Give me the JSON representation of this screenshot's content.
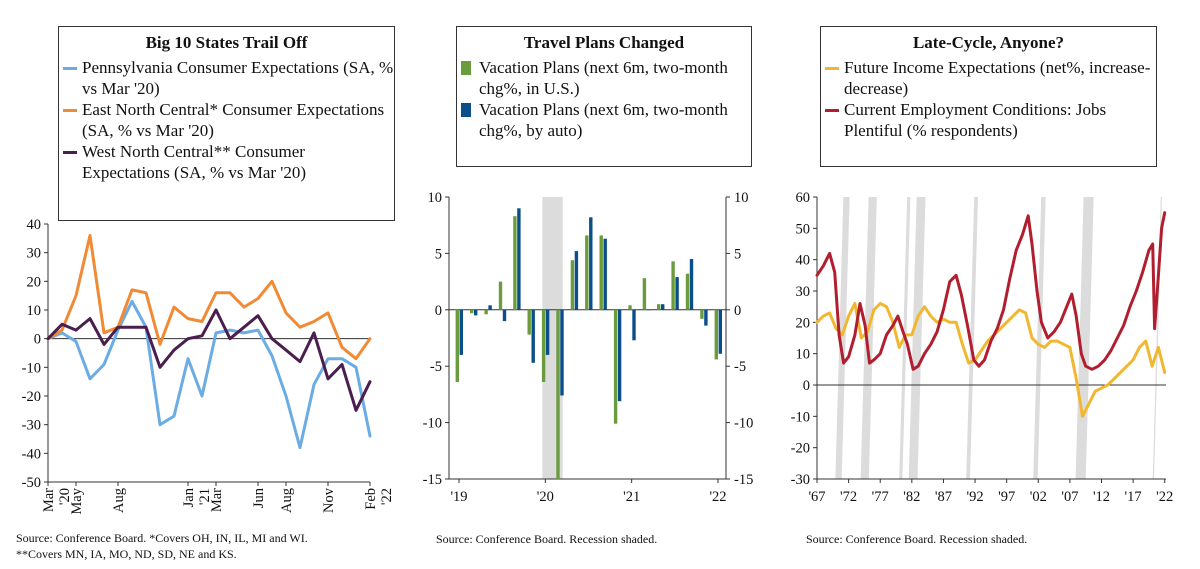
{
  "charts": [
    {
      "title": "Big 10 States Trail Off",
      "source_lines": [
        "Source: Conference Board. *Covers OH, IN, IL, MI and WI.",
        "**Covers MN, IA, MO, ND, SD, NE and KS."
      ]
    },
    {
      "title": "Travel Plans Changed",
      "source_lines": [
        "Source: Conference Board. Recession shaded."
      ]
    },
    {
      "title": "Late-Cycle, Anyone?",
      "source_lines": [
        "Source: Conference Board. Recession shaded."
      ]
    }
  ],
  "chart_data": [
    {
      "type": "line",
      "title": "Big 10 States Trail Off",
      "colors": {
        "Pennsylvania": "#6cace4",
        "East North Central": "#f08a35",
        "West North Central": "#4a1e4e"
      },
      "x_tick_labels": [
        [
          "Mar",
          "'20"
        ],
        [
          "May"
        ],
        [
          "Aug"
        ],
        [
          "Jan",
          "'21"
        ],
        [
          "Mar"
        ],
        [
          "Jun"
        ],
        [
          "Aug"
        ],
        [
          "Nov"
        ],
        [
          "Feb",
          "'22"
        ]
      ],
      "x_tick_index": [
        0,
        2,
        5,
        10,
        12,
        15,
        17,
        20,
        23
      ],
      "ylim": [
        -50,
        40
      ],
      "yticks": [
        40,
        30,
        20,
        10,
        0,
        -10,
        -20,
        -30,
        -40,
        -50
      ],
      "series": [
        {
          "name": "Pennsylvania Consumer Expectations (SA, % vs Mar '20)",
          "color": "#6cace4",
          "values": [
            0,
            2,
            -1,
            -14,
            -9,
            3,
            13,
            4,
            -30,
            -27,
            -7,
            -20,
            2,
            3,
            2,
            3,
            -6,
            -20,
            -38,
            -16,
            -7,
            -7,
            -10,
            -34
          ]
        },
        {
          "name": "East North Central* Consumer Expectations (SA, % vs Mar '20)",
          "color": "#f08a35",
          "values": [
            0,
            3,
            15,
            36,
            2,
            4,
            17,
            16,
            -2,
            11,
            7,
            6,
            16,
            16,
            11,
            14,
            20,
            9,
            4,
            6,
            9,
            -3,
            -7,
            0
          ]
        },
        {
          "name": "West North Central** Consumer Expectations (SA, % vs Mar '20)",
          "color": "#4a1e4e",
          "values": [
            0,
            5,
            3,
            7,
            -2,
            4,
            4,
            4,
            -10,
            -4,
            0,
            1,
            10,
            0,
            4,
            8,
            0,
            -4,
            -8,
            2,
            -14,
            -9,
            -25,
            -15
          ]
        }
      ]
    },
    {
      "type": "bar",
      "title": "Travel Plans Changed",
      "ylim": [
        -15,
        10
      ],
      "yticks": [
        10,
        5,
        0,
        -5,
        -10,
        -15
      ],
      "x_tick_labels": [
        "'19",
        "'20",
        "'21",
        "'22"
      ],
      "x_tick_index": [
        0,
        6,
        12,
        18
      ],
      "recession_shade_index": [
        6,
        7
      ],
      "series": [
        {
          "name": "Vacation Plans (next 6m, two-month chg%, in U.S.)",
          "color": "#6a9c3e",
          "values": [
            -6.4,
            -0.3,
            -0.4,
            2.5,
            8.3,
            -2.2,
            -6.4,
            -15.0,
            4.4,
            6.6,
            6.6,
            -10.1,
            0.4,
            2.8,
            0.5,
            4.3,
            3.2,
            -0.8,
            -4.4
          ]
        },
        {
          "name": "Vacation Plans (next 6m, two-month chg%, by auto)",
          "color": "#0b4f8a",
          "values": [
            -4.0,
            -0.5,
            0.4,
            -1.0,
            9.0,
            -4.7,
            -4.0,
            -7.6,
            5.2,
            8.2,
            6.3,
            -8.1,
            -2.7,
            0.0,
            0.5,
            2.9,
            4.5,
            -1.4,
            -3.9
          ]
        }
      ]
    },
    {
      "type": "line",
      "title": "Late-Cycle, Anyone?",
      "xlim": [
        1967,
        2022.2
      ],
      "ylim": [
        -30,
        60
      ],
      "yticks": [
        60,
        50,
        40,
        30,
        20,
        10,
        0,
        -10,
        -20,
        -30
      ],
      "x_tick_labels": [
        "'67",
        "'72",
        "'77",
        "'82",
        "'87",
        "'92",
        "'97",
        "'02",
        "'07",
        "'12",
        "'17",
        "'22"
      ],
      "x_tick_years": [
        1967,
        1972,
        1977,
        1982,
        1987,
        1992,
        1997,
        2002,
        2007,
        2012,
        2017,
        2022
      ],
      "recessions": [
        [
          1969.9,
          1970.9
        ],
        [
          1973.9,
          1975.2
        ],
        [
          1980.0,
          1980.5
        ],
        [
          1981.5,
          1982.9
        ],
        [
          1990.6,
          1991.2
        ],
        [
          2001.2,
          2001.9
        ],
        [
          2007.9,
          2009.5
        ],
        [
          2020.1,
          2020.3
        ]
      ],
      "series": [
        {
          "name": "Future Income Expectations (net%, increase-decrease)",
          "color": "#f2b731",
          "x": [
            1967,
            1968,
            1969,
            1970,
            1971,
            1972,
            1973,
            1974,
            1975,
            1976,
            1977,
            1978,
            1979,
            1980,
            1981,
            1982,
            1983,
            1984,
            1985,
            1986,
            1987,
            1988,
            1989,
            1990,
            1991,
            1992,
            1993,
            1994,
            1995,
            1996,
            1997,
            1998,
            1999,
            2000,
            2001,
            2002,
            2003,
            2004,
            2005,
            2006,
            2007,
            2008,
            2009,
            2010,
            2011,
            2012,
            2013,
            2014,
            2015,
            2016,
            2017,
            2018,
            2019,
            2020,
            2021,
            2022
          ],
          "y": [
            20,
            22,
            23,
            18,
            16,
            22,
            26,
            15,
            17,
            24,
            26,
            25,
            20,
            12,
            16,
            16,
            22,
            25,
            22,
            20,
            21,
            20,
            20,
            13,
            7,
            8,
            11,
            14,
            16,
            18,
            20,
            22,
            24,
            23,
            15,
            13,
            12,
            14,
            14,
            13,
            12,
            2,
            -10,
            -6,
            -2,
            -1,
            0,
            2,
            4,
            6,
            8,
            12,
            14,
            6,
            12,
            4
          ]
        },
        {
          "name": "Current Employment Conditions: Jobs Plentiful (% respondents)",
          "color": "#b01e2f",
          "x": [
            1967,
            1968,
            1969,
            1969.8,
            1970.5,
            1971.2,
            1972,
            1973,
            1973.8,
            1974.6,
            1975.3,
            1976,
            1977,
            1978,
            1979,
            1979.8,
            1980.6,
            1981.3,
            1982.2,
            1983,
            1984,
            1985,
            1986,
            1987,
            1988,
            1989,
            1989.8,
            1990.8,
            1991.8,
            1992.6,
            1993.5,
            1994.5,
            1995.5,
            1996.5,
            1997.5,
            1998.5,
            1999.5,
            2000.4,
            2001,
            2001.8,
            2002.5,
            2003.5,
            2004.5,
            2005.5,
            2006.5,
            2007.3,
            2008,
            2008.8,
            2009.5,
            2010.5,
            2011.5,
            2012.5,
            2013.5,
            2014.5,
            2015.5,
            2016.5,
            2017.5,
            2018.5,
            2019.5,
            2020.1,
            2020.4,
            2021,
            2021.5,
            2022
          ],
          "y": [
            35,
            38,
            42,
            36,
            16,
            7,
            9,
            16,
            26,
            19,
            7,
            8,
            10,
            16,
            19,
            22,
            17,
            13,
            5,
            6,
            10,
            13,
            17,
            24,
            33,
            35,
            29,
            19,
            8,
            6,
            8,
            14,
            18,
            24,
            34,
            43,
            48,
            54,
            45,
            30,
            20,
            15,
            17,
            20,
            25,
            29,
            22,
            10,
            6,
            5,
            6,
            8,
            11,
            15,
            19,
            25,
            30,
            36,
            43,
            45,
            18,
            35,
            50,
            55
          ]
        }
      ]
    }
  ]
}
